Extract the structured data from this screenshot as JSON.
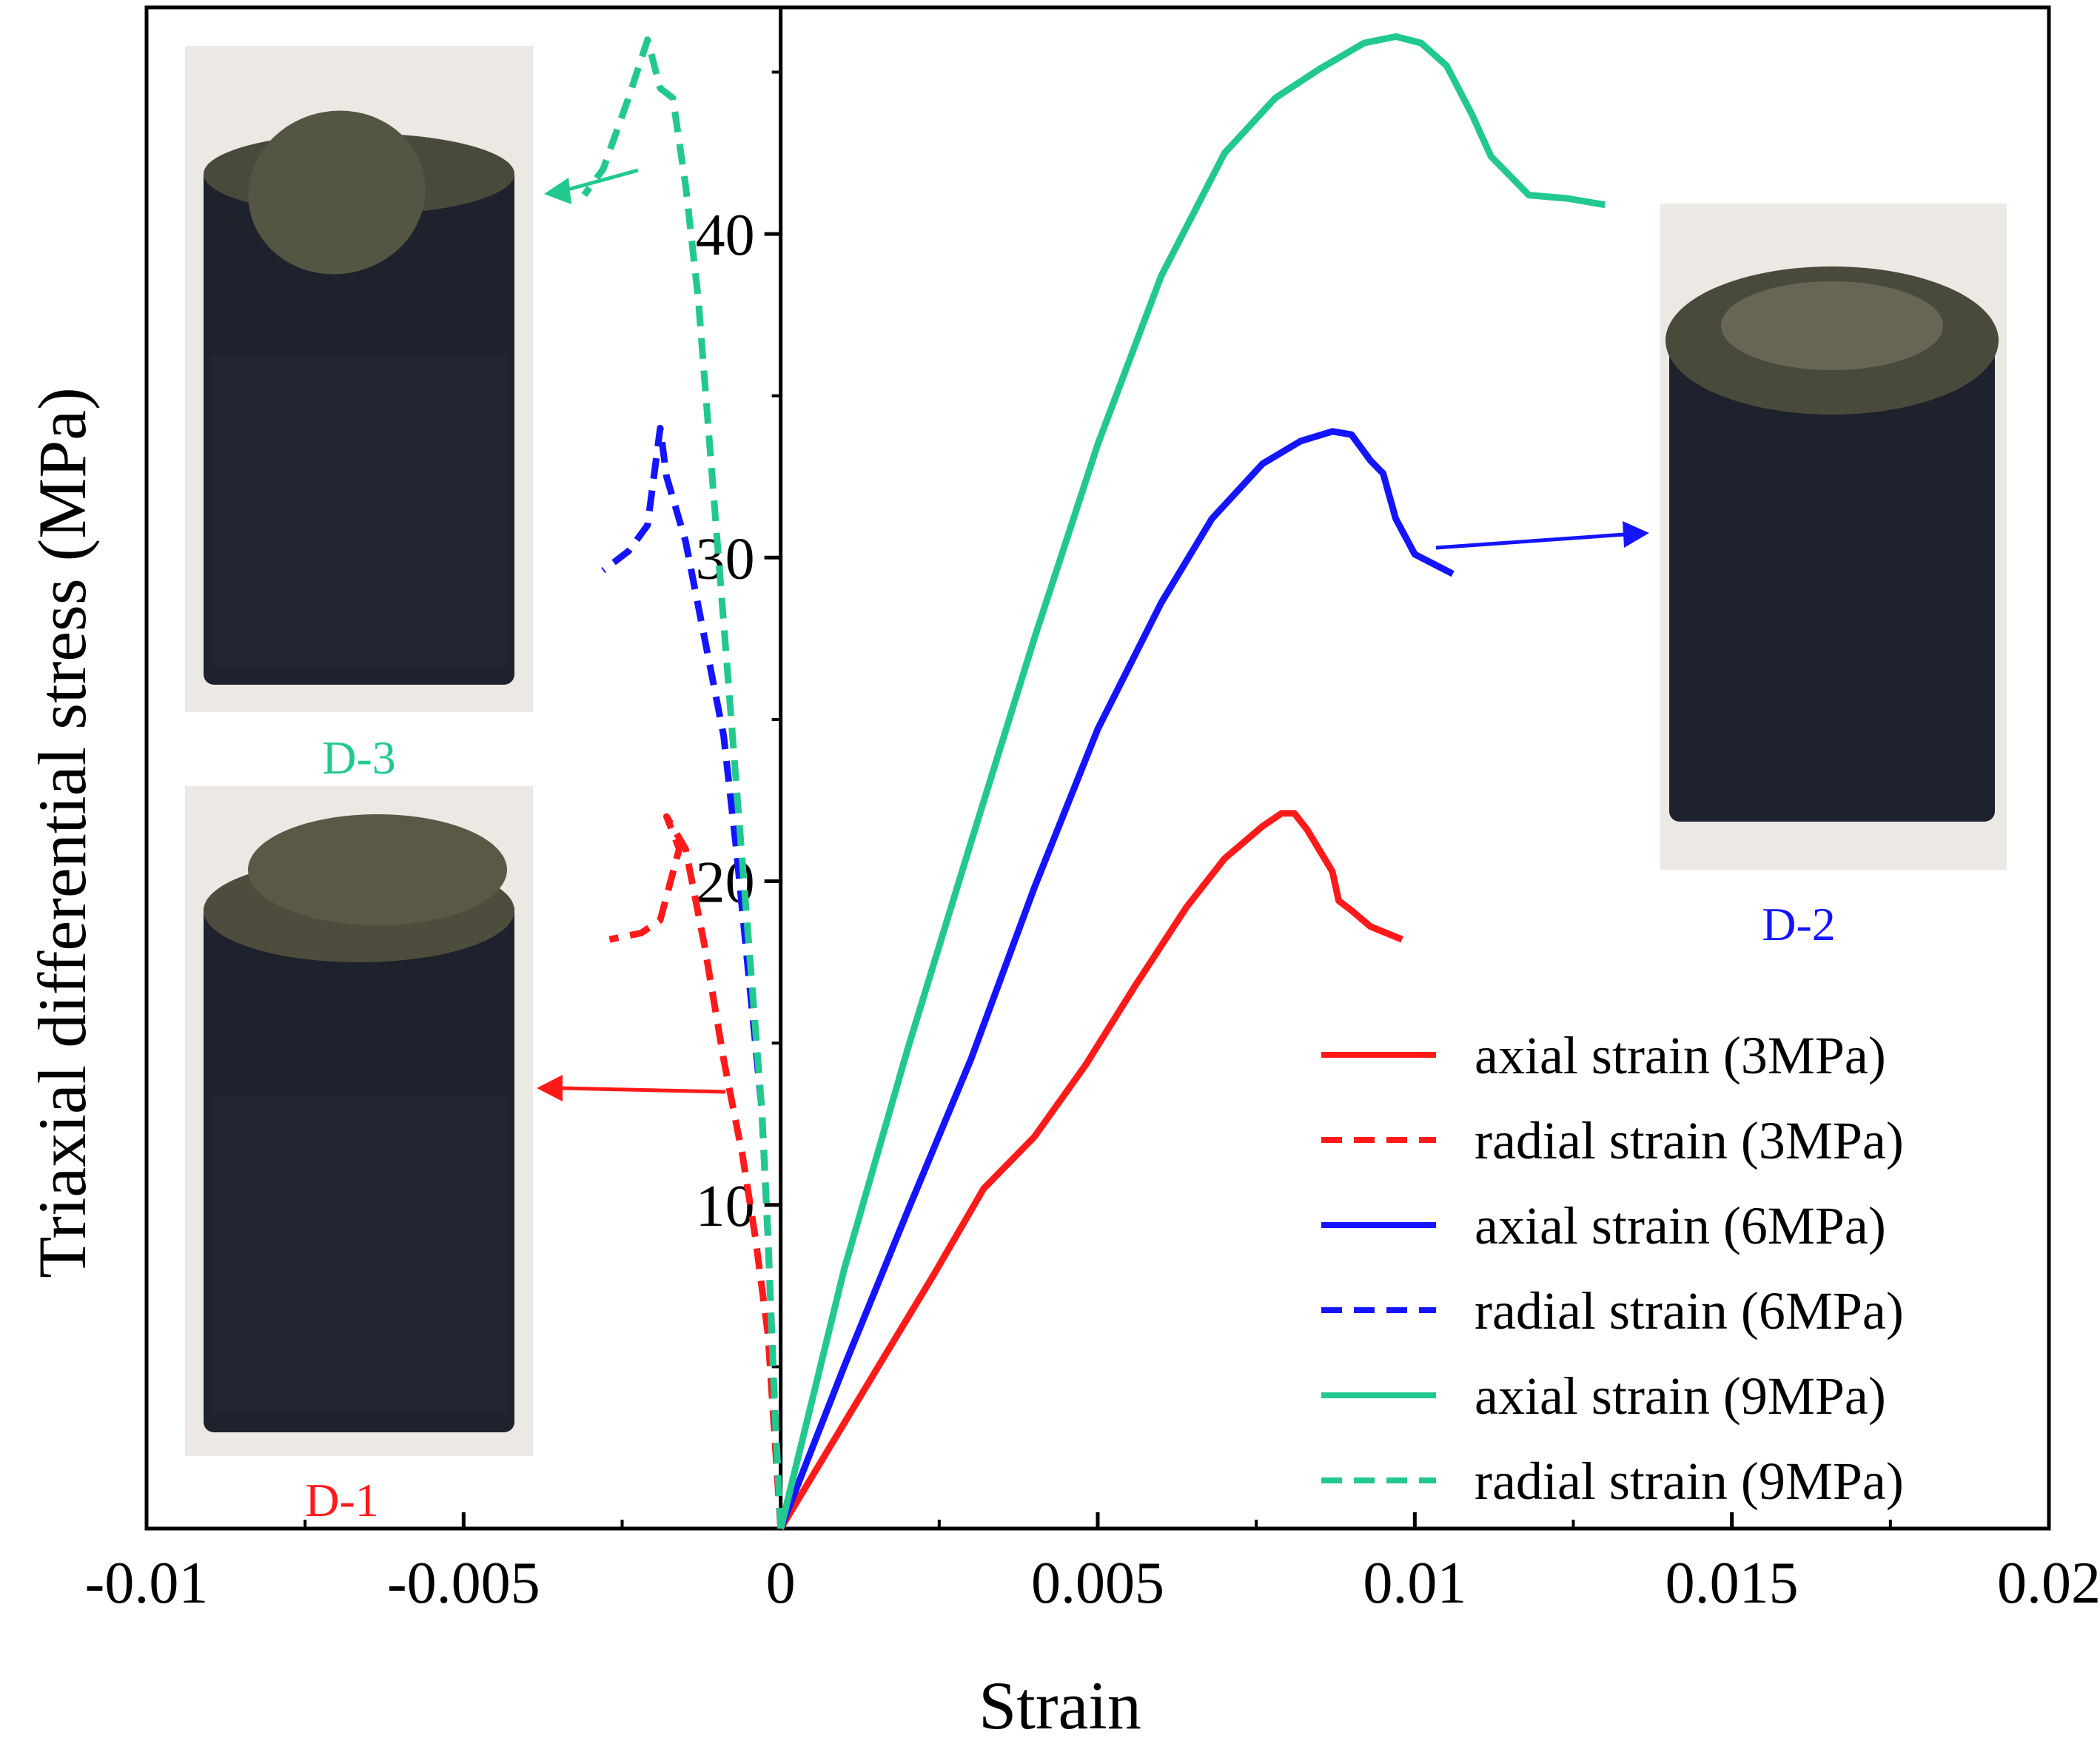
{
  "chart_data": {
    "type": "line",
    "xlabel": "Strain",
    "ylabel": "Triaxial differential stress  (MPa)",
    "xlim": [
      -0.01,
      0.02
    ],
    "ylim": [
      0,
      47
    ],
    "xticks": [
      -0.01,
      -0.005,
      0,
      0.005,
      0.01,
      0.015,
      0.02
    ],
    "xtick_labels": [
      "-0.01",
      "-0.005",
      "0",
      "0.005",
      "0.01",
      "0.015",
      "0.02"
    ],
    "yticks": [
      10,
      20,
      30,
      40
    ],
    "ytick_labels": [
      "10",
      "20",
      "30",
      "40"
    ],
    "legend_position": "bottom-right",
    "series": [
      {
        "name": "axial strain (3MPa)",
        "color": "#ff1a1a",
        "dash": "solid",
        "x": [
          0,
          0.0008,
          0.0016,
          0.0024,
          0.0032,
          0.004,
          0.0048,
          0.0056,
          0.0064,
          0.007,
          0.0076,
          0.0079,
          0.0081,
          0.0083,
          0.0087,
          0.0088,
          0.009,
          0.0093,
          0.0098
        ],
        "y": [
          0,
          2.6,
          5.2,
          7.8,
          10.5,
          12.1,
          14.3,
          16.8,
          19.2,
          20.7,
          21.7,
          22.1,
          22.1,
          21.6,
          20.3,
          19.4,
          19.1,
          18.6,
          18.2
        ]
      },
      {
        "name": "radial strain (3MPa)",
        "color": "#ff1a1a",
        "dash": "dashed",
        "x": [
          0,
          -0.0001,
          -0.0002,
          -0.0004,
          -0.0006,
          -0.0008,
          -0.0009,
          -0.0012,
          -0.0015,
          -0.0018,
          -0.0016,
          -0.0019,
          -0.0022,
          -0.0027
        ],
        "y": [
          0,
          3,
          6,
          9,
          11.5,
          13.5,
          14.5,
          18,
          21,
          22,
          21,
          18.8,
          18.4,
          18.2
        ]
      },
      {
        "name": "axial strain (6MPa)",
        "color": "#1414ff",
        "dash": "solid",
        "x": [
          0,
          0.001,
          0.002,
          0.003,
          0.004,
          0.005,
          0.006,
          0.0068,
          0.0076,
          0.0082,
          0.0087,
          0.009,
          0.0093,
          0.0095,
          0.0097,
          0.01,
          0.0106
        ],
        "y": [
          0,
          5,
          9.8,
          14.5,
          19.8,
          24.7,
          28.6,
          31.2,
          32.9,
          33.6,
          33.9,
          33.8,
          33.0,
          32.6,
          31.2,
          30.1,
          29.5
        ]
      },
      {
        "name": "radial strain (6MPa)",
        "color": "#1414ff",
        "dash": "dashed",
        "x": [
          0,
          -0.0001,
          -0.0002,
          -0.0003,
          -0.0005,
          -0.0007,
          -0.0009,
          -0.0012,
          -0.0015,
          -0.0018,
          -0.0019,
          -0.0021,
          -0.0024,
          -0.0028
        ],
        "y": [
          0,
          4,
          9,
          13,
          17,
          21,
          24.5,
          27.5,
          30.5,
          32.5,
          34,
          31,
          30.2,
          29.6
        ]
      },
      {
        "name": "axial strain (9MPa)",
        "color": "#22c98e",
        "dash": "solid",
        "x": [
          0,
          0.001,
          0.002,
          0.003,
          0.004,
          0.005,
          0.006,
          0.007,
          0.0078,
          0.0085,
          0.0092,
          0.0097,
          0.0101,
          0.0105,
          0.0109,
          0.0112,
          0.0118,
          0.0124,
          0.013
        ],
        "y": [
          0,
          8,
          14.8,
          21.2,
          27.5,
          33.5,
          38.7,
          42.5,
          44.2,
          45.1,
          45.9,
          46.1,
          45.9,
          45.2,
          43.7,
          42.4,
          41.2,
          41.1,
          40.9
        ]
      },
      {
        "name": "radial strain (9MPa)",
        "color": "#22c98e",
        "dash": "dashed",
        "x": [
          0,
          -0.0001,
          -0.0002,
          -0.0003,
          -0.0005,
          -0.0007,
          -0.0009,
          -0.0011,
          -0.0013,
          -0.0015,
          -0.0017,
          -0.0019,
          -0.0021,
          -0.0024,
          -0.0028,
          -0.0031
        ],
        "y": [
          0,
          4,
          9,
          13,
          18,
          23,
          28,
          33,
          38,
          41.5,
          44.2,
          44.5,
          46.0,
          44.2,
          42.0,
          41.2
        ]
      }
    ],
    "annotations": [
      {
        "label": "D-1",
        "color": "#ff1a1a",
        "points_to": "radial strain (3MPa)"
      },
      {
        "label": "D-2",
        "color": "#1414ff",
        "points_to": "axial strain (6MPa)"
      },
      {
        "label": "D-3",
        "color": "#22c98e",
        "points_to": "radial strain (9MPa)"
      }
    ]
  }
}
